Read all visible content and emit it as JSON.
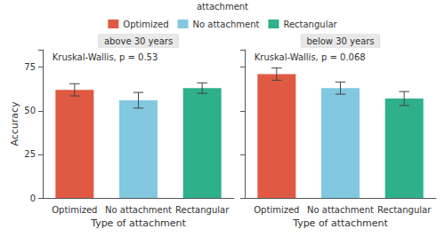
{
  "chart_data": [
    {
      "type": "bar",
      "title": "above 30 years",
      "annotation": "Kruskal-Wallis, p = 0.53",
      "categories": [
        "Optimized",
        "No attachment",
        "Rectangular"
      ],
      "values": [
        62,
        56,
        63
      ],
      "errors": [
        3.5,
        4.5,
        3.0
      ],
      "colors": [
        "#E05A43",
        "#82C8E0",
        "#2EB08A"
      ],
      "xlabel": "Type of attachment",
      "ylabel": "Accuracy",
      "ylim": [
        0,
        85
      ],
      "yticks": [
        0,
        25,
        50,
        75
      ],
      "grid": false,
      "legend": "top",
      "legend_title": "attachment"
    },
    {
      "type": "bar",
      "title": "below 30 years",
      "annotation": "Kruskal-Wallis, p = 0.068",
      "categories": [
        "Optimized",
        "No attachment",
        "Rectangular"
      ],
      "values": [
        71,
        63,
        57
      ],
      "errors": [
        3.5,
        3.5,
        4.0
      ],
      "colors": [
        "#E05A43",
        "#82C8E0",
        "#2EB08A"
      ],
      "xlabel": "Type of attachment",
      "ylim": [
        0,
        85
      ],
      "yticks": [
        0,
        25,
        50,
        75
      ],
      "grid": false,
      "tick_labels": "x"
    }
  ]
}
